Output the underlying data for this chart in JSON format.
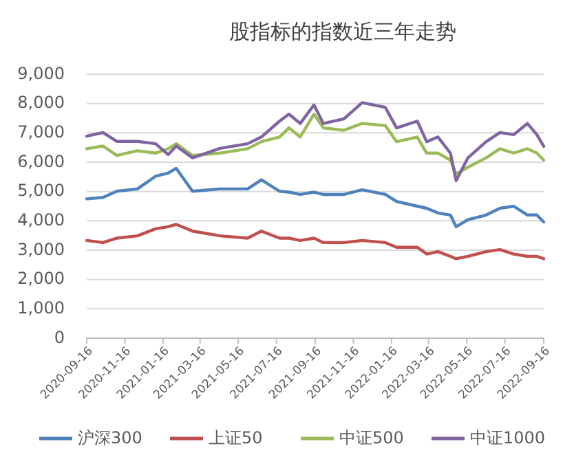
{
  "chart_data": {
    "type": "line",
    "title": "股指标的指数近三年走势",
    "x": [
      "2020-09-16",
      "2020-10-12",
      "2020-11-03",
      "2020-12-06",
      "2021-01-04",
      "2021-01-24",
      "2021-02-06",
      "2021-03-04",
      "2021-04-17",
      "2021-05-31",
      "2021-06-22",
      "2021-07-21",
      "2021-08-05",
      "2021-08-23",
      "2021-09-14",
      "2021-09-29",
      "2021-11-01",
      "2021-11-30",
      "2022-01-06",
      "2022-01-24",
      "2022-02-26",
      "2022-03-13",
      "2022-03-31",
      "2022-04-20",
      "2022-04-29",
      "2022-05-18",
      "2022-06-16",
      "2022-07-08",
      "2022-07-30",
      "2022-08-21",
      "2022-09-05",
      "2022-09-16"
    ],
    "series": [
      {
        "name": "沪深300",
        "color": "#4f81bd",
        "values": [
          4750,
          4800,
          5010,
          5090,
          5520,
          5630,
          5790,
          5010,
          5090,
          5090,
          5400,
          5010,
          4980,
          4900,
          4980,
          4900,
          4900,
          5060,
          4900,
          4660,
          4500,
          4430,
          4270,
          4200,
          3800,
          4040,
          4200,
          4430,
          4500,
          4200,
          4200,
          3960
        ]
      },
      {
        "name": "上证50",
        "color": "#c0504d",
        "values": [
          3330,
          3260,
          3410,
          3490,
          3730,
          3800,
          3880,
          3650,
          3490,
          3410,
          3650,
          3410,
          3410,
          3330,
          3410,
          3260,
          3260,
          3330,
          3260,
          3100,
          3100,
          2870,
          2950,
          2790,
          2710,
          2790,
          2950,
          3020,
          2870,
          2790,
          2790,
          2710
        ]
      },
      {
        "name": "中证500",
        "color": "#9bbb59",
        "values": [
          6460,
          6550,
          6230,
          6390,
          6310,
          6460,
          6630,
          6230,
          6310,
          6460,
          6700,
          6860,
          7170,
          6860,
          7640,
          7170,
          7090,
          7320,
          7250,
          6700,
          6860,
          6310,
          6310,
          6070,
          5600,
          5830,
          6150,
          6460,
          6310,
          6460,
          6310,
          6070
        ]
      },
      {
        "name": "中证1000",
        "color": "#8064a2",
        "values": [
          6890,
          7010,
          6710,
          6710,
          6630,
          6260,
          6550,
          6150,
          6470,
          6630,
          6860,
          7400,
          7640,
          7320,
          7950,
          7320,
          7480,
          8030,
          7870,
          7170,
          7400,
          6700,
          6860,
          6310,
          5370,
          6150,
          6700,
          7010,
          6940,
          7320,
          6940,
          6540
        ]
      }
    ],
    "xlim": [
      "2020-09-16",
      "2022-09-16"
    ],
    "xticks": [
      "2020-09-16",
      "2020-11-16",
      "2021-01-16",
      "2021-03-16",
      "2021-05-16",
      "2021-07-16",
      "2021-09-16",
      "2021-11-16",
      "2022-01-16",
      "2022-03-16",
      "2022-05-16",
      "2022-07-16",
      "2022-09-16"
    ],
    "ylim": [
      0,
      9000
    ],
    "yticks": [
      {
        "value": 0,
        "label": "0"
      },
      {
        "value": 1000,
        "label": "1,000"
      },
      {
        "value": 2000,
        "label": "2,000"
      },
      {
        "value": 3000,
        "label": "3,000"
      },
      {
        "value": 4000,
        "label": "4,000"
      },
      {
        "value": 5000,
        "label": "5,000"
      },
      {
        "value": 6000,
        "label": "6,000"
      },
      {
        "value": 7000,
        "label": "7,000"
      },
      {
        "value": 8000,
        "label": "8,000"
      },
      {
        "value": 9000,
        "label": "9,000"
      }
    ],
    "grid": "y",
    "legend": "bottom",
    "marker": "none",
    "line_style": "solid"
  }
}
